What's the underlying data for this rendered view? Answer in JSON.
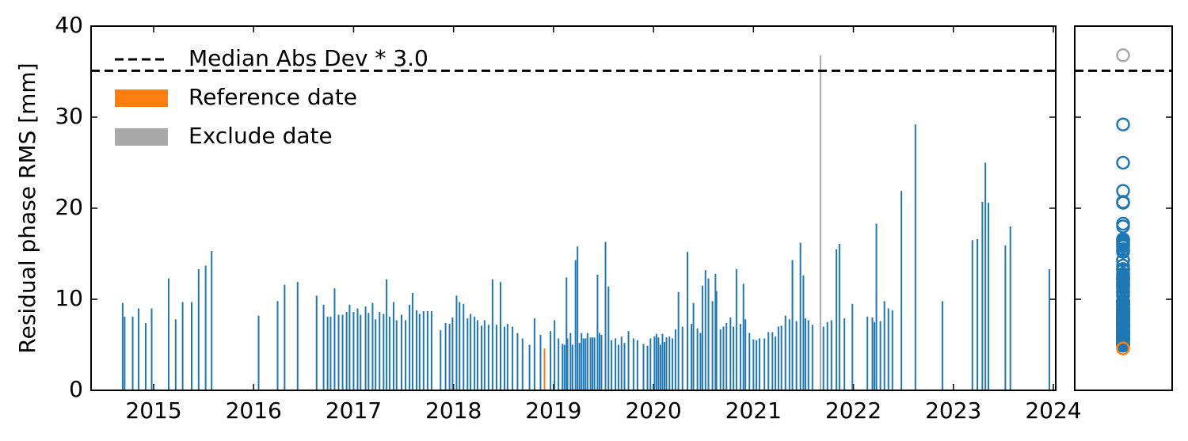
{
  "chart_data": {
    "type": "bar",
    "ylabel": "Residual phase RMS [mm]",
    "xlim": [
      2014.374,
      2024.024
    ],
    "ylim": [
      0,
      40
    ],
    "xticks": [
      2015,
      2016,
      2017,
      2018,
      2019,
      2020,
      2021,
      2022,
      2023,
      2024
    ],
    "yticks": [
      0,
      10,
      20,
      30,
      40
    ],
    "threshold": {
      "name": "Median Abs Dev * 3.0",
      "value": 35.1,
      "color": "#000000"
    },
    "series": [
      {
        "color": "#1f77b4",
        "x": [
          2014.69,
          2014.71,
          2014.79,
          2014.85,
          2014.92,
          2014.98,
          2015.15,
          2015.22,
          2015.29,
          2015.38,
          2015.45,
          2015.52,
          2015.58,
          2016.05,
          2016.24,
          2016.31,
          2016.44,
          2016.63,
          2016.7,
          2016.74,
          2016.77,
          2016.81,
          2016.85,
          2016.89,
          2016.93,
          2016.96,
          2017.0,
          2017.04,
          2017.07,
          2017.12,
          2017.15,
          2017.19,
          2017.22,
          2017.26,
          2017.3,
          2017.33,
          2017.36,
          2017.4,
          2017.43,
          2017.48,
          2017.52,
          2017.56,
          2017.59,
          2017.63,
          2017.66,
          2017.7,
          2017.74,
          2017.78,
          2017.87,
          2017.92,
          2017.96,
          2017.99,
          2018.03,
          2018.06,
          2018.1,
          2018.14,
          2018.17,
          2018.21,
          2018.24,
          2018.28,
          2018.31,
          2018.35,
          2018.39,
          2018.43,
          2018.47,
          2018.51,
          2018.54,
          2018.59,
          2018.64,
          2018.69,
          2018.76,
          2018.81,
          2018.87,
          2018.97,
          2019.01,
          2019.05,
          2019.09,
          2019.11,
          2019.13,
          2019.14,
          2019.17,
          2019.19,
          2019.22,
          2019.24,
          2019.26,
          2019.28,
          2019.3,
          2019.32,
          2019.34,
          2019.37,
          2019.39,
          2019.41,
          2019.44,
          2019.46,
          2019.48,
          2019.52,
          2019.55,
          2019.58,
          2019.62,
          2019.65,
          2019.68,
          2019.71,
          2019.75,
          2019.8,
          2019.84,
          2019.9,
          2019.94,
          2019.97,
          2020.01,
          2020.03,
          2020.05,
          2020.07,
          2020.09,
          2020.11,
          2020.13,
          2020.16,
          2020.19,
          2020.22,
          2020.25,
          2020.29,
          2020.34,
          2020.38,
          2020.4,
          2020.44,
          2020.47,
          2020.49,
          2020.52,
          2020.55,
          2020.59,
          2020.62,
          2020.63,
          2020.67,
          2020.7,
          2020.73,
          2020.77,
          2020.8,
          2020.83,
          2020.87,
          2020.9,
          2020.92,
          2020.96,
          2021.0,
          2021.03,
          2021.06,
          2021.11,
          2021.15,
          2021.19,
          2021.22,
          2021.25,
          2021.28,
          2021.32,
          2021.36,
          2021.39,
          2021.43,
          2021.47,
          2021.5,
          2021.52,
          2021.55,
          2021.59,
          2021.7,
          2021.74,
          2021.78,
          2021.83,
          2021.86,
          2021.91,
          2021.99,
          2022.14,
          2022.19,
          2022.21,
          2022.23,
          2022.27,
          2022.31,
          2022.35,
          2022.39,
          2022.48,
          2022.62,
          2022.89,
          2023.19,
          2023.24,
          2023.29,
          2023.32,
          2023.35,
          2023.52,
          2023.57,
          2023.96
        ],
        "values": [
          9.6,
          8.1,
          8.1,
          9.0,
          7.4,
          9.0,
          12.3,
          7.8,
          9.7,
          9.7,
          13.3,
          13.7,
          15.3,
          8.2,
          9.8,
          11.6,
          11.9,
          10.4,
          9.4,
          8.1,
          8.1,
          11.2,
          8.3,
          8.3,
          8.6,
          9.4,
          8.6,
          9.0,
          8.3,
          9.2,
          8.5,
          9.6,
          7.8,
          8.6,
          8.4,
          12.2,
          8.1,
          9.7,
          7.7,
          8.3,
          7.7,
          9.4,
          10.7,
          8.8,
          8.4,
          8.7,
          8.7,
          8.7,
          6.6,
          7.4,
          7.3,
          8.0,
          10.4,
          9.7,
          9.5,
          7.9,
          8.4,
          8.1,
          7.7,
          7.1,
          7.7,
          7.2,
          12.2,
          7.2,
          11.9,
          7.0,
          7.3,
          7.0,
          6.3,
          5.7,
          5.0,
          7.9,
          6.1,
          6.5,
          7.7,
          5.7,
          5.1,
          5.0,
          12.4,
          5.7,
          6.3,
          5.0,
          14.3,
          15.8,
          5.2,
          6.3,
          5.7,
          5.7,
          6.3,
          5.8,
          5.8,
          5.8,
          12.7,
          6.3,
          6.1,
          16.3,
          11.4,
          5.5,
          5.7,
          5.0,
          5.9,
          5.2,
          6.5,
          5.7,
          5.5,
          5.1,
          4.9,
          5.7,
          5.9,
          6.2,
          5.8,
          5.0,
          6.2,
          5.3,
          5.8,
          5.9,
          5.7,
          6.7,
          10.8,
          7.0,
          15.2,
          7.3,
          9.6,
          6.8,
          6.3,
          11.5,
          13.2,
          12.3,
          9.8,
          12.8,
          10.9,
          6.7,
          7.0,
          7.4,
          8.0,
          7.0,
          13.3,
          7.3,
          11.7,
          7.8,
          6.3,
          5.6,
          5.5,
          5.7,
          5.7,
          6.4,
          6.4,
          5.9,
          7.0,
          7.1,
          8.2,
          7.8,
          14.3,
          7.6,
          16.2,
          12.6,
          7.9,
          7.7,
          7.2,
          7.0,
          7.5,
          7.7,
          15.5,
          16.1,
          7.9,
          9.5,
          8.1,
          8.0,
          7.5,
          18.3,
          7.6,
          9.8,
          9.0,
          8.8,
          21.9,
          29.2,
          9.8,
          16.5,
          16.6,
          20.7,
          25.0,
          20.6,
          15.9,
          18.0,
          13.3
        ]
      },
      {
        "name": "Reference date",
        "color": "#ff7f0e",
        "x": [
          2018.91
        ],
        "values": [
          4.6
        ]
      },
      {
        "name": "Exclude date",
        "color": "#a9a9a9",
        "x": [
          2021.67
        ],
        "values": [
          36.8
        ]
      }
    ]
  }
}
